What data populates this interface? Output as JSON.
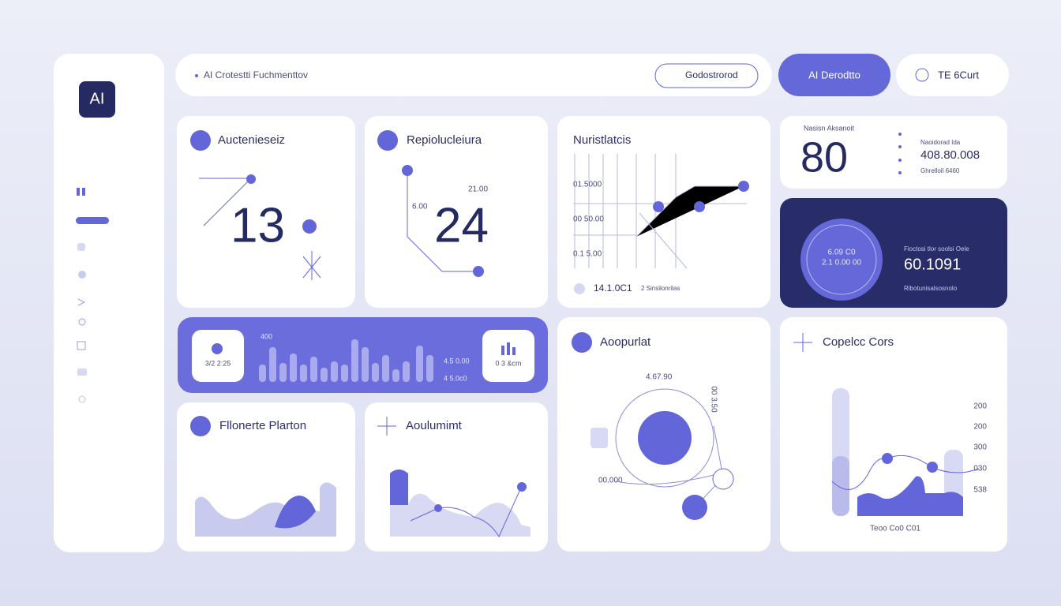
{
  "sidebar": {
    "logo": "AI"
  },
  "header": {
    "search": "AI Crotestti Fuchmenttov",
    "buttons": [
      "Godostrorod",
      "AI Derodtto",
      "TE 6Curt"
    ]
  },
  "audience": {
    "title": "Auctenieseiz",
    "value": 13
  },
  "replication": {
    "title": "Repiolucleiura",
    "value": 24,
    "labels": [
      "21.00",
      "6.00"
    ]
  },
  "statistics": {
    "title": "Nuristlatcis",
    "labels": [
      "01.5000",
      "00 50.00",
      "0.1 5.00"
    ],
    "footer": "14.1.0C1",
    "note": "2 Sinsilonrilas"
  },
  "summary": {
    "title": "Nasisn Aksanoit",
    "value": 80,
    "stat": "408.80.008",
    "note_top": "Naoidorad Ida",
    "note_bottom": "Ghrelloil 6460"
  },
  "ring_card": {
    "ring": [
      "6.09 C0",
      "2.1 0.00 00"
    ],
    "title": "Fioctosi tlor soolsi Oele",
    "value": "60.1091",
    "note": "Ribotunisalsosnolo"
  },
  "strip": {
    "left_label": "3/2 2:25",
    "top_label": "400",
    "right_labels": [
      "4.5 0.00",
      "4 5.0c0"
    ],
    "badge": "0 3 &cm"
  },
  "platform": {
    "title": "Fllonerte Plarton"
  },
  "accumulant": {
    "title": "Aoulumimt"
  },
  "output": {
    "title": "Aoopurlat",
    "labels": [
      "4.67.90",
      "00.000",
      "00 3.50"
    ]
  },
  "colors": {
    "title": "Copelcc Cors",
    "labels": [
      "200",
      "200",
      "300",
      "030",
      "538"
    ],
    "footer": "Teoo Co0 C01"
  }
}
